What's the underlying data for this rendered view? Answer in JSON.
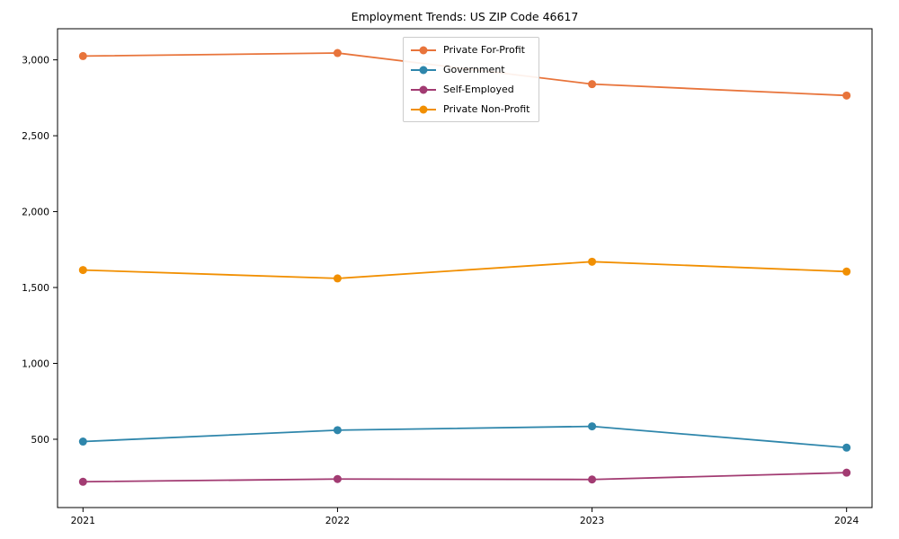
{
  "figure": {
    "title": "Employment Trends: US ZIP Code 46617"
  },
  "chart_data": {
    "type": "line",
    "title": "Employment Trends: US ZIP Code 46617",
    "xlabel": "",
    "ylabel": "",
    "categories": [
      2021,
      2022,
      2023,
      2024
    ],
    "xtick_labels": [
      "2021",
      "2022",
      "2023",
      "2024"
    ],
    "yticks": [
      500,
      1000,
      1500,
      2000,
      2500,
      3000
    ],
    "ytick_labels": [
      "500",
      "1,000",
      "1,500",
      "2,000",
      "2,500",
      "3,000"
    ],
    "ylim": [
      50,
      3205
    ],
    "xlim": [
      2020.9,
      2024.1
    ],
    "grid": false,
    "legend_position": "upper center",
    "marker": "circle",
    "axis_color": "#000000",
    "series": [
      {
        "name": "Private For-Profit",
        "color": "#E8743B",
        "values": [
          3025,
          3045,
          2840,
          2765
        ]
      },
      {
        "name": "Government",
        "color": "#2E86AB",
        "values": [
          485,
          560,
          585,
          445
        ]
      },
      {
        "name": "Self-Employed",
        "color": "#A23B72",
        "values": [
          220,
          238,
          235,
          280
        ]
      },
      {
        "name": "Private Non-Profit",
        "color": "#F18F01",
        "values": [
          1615,
          1560,
          1670,
          1605
        ]
      }
    ]
  }
}
